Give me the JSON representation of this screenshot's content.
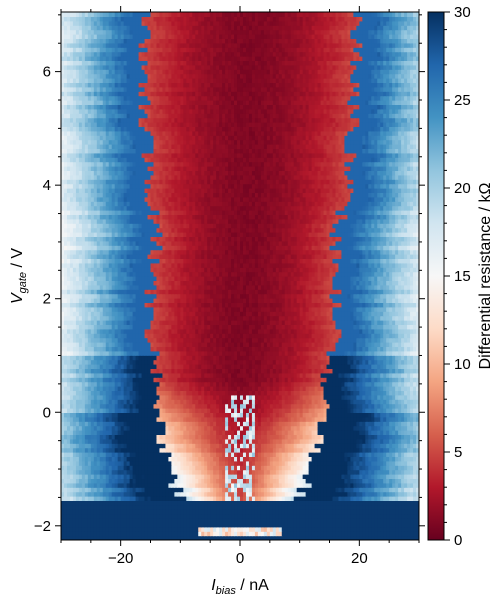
{
  "chart_data": {
    "type": "heatmap",
    "title": "",
    "xlabel": {
      "symbol": "I",
      "subscript": "bias",
      "unit": " / nA"
    },
    "ylabel": {
      "symbol": "V",
      "subscript": "gate",
      "unit": " / V"
    },
    "colorbar_label": "Differential resistance / kΩ",
    "colormap": "RdBu",
    "x_range": [
      -30,
      30
    ],
    "y_range": [
      -2.25,
      7.05
    ],
    "color_range": [
      0,
      30
    ],
    "x_ticks": [
      -20,
      0,
      20
    ],
    "y_ticks": [
      -2,
      0,
      2,
      4,
      6
    ],
    "colorbar_ticks": [
      0,
      5,
      10,
      15,
      20,
      25,
      30
    ],
    "gap_edge_left": [
      {
        "vgate": -2.1,
        "ibias": -6
      },
      {
        "vgate": -1.9,
        "ibias": -14
      },
      {
        "vgate": -1.5,
        "ibias": -10
      },
      {
        "vgate": -1.0,
        "ibias": -12
      },
      {
        "vgate": -0.5,
        "ibias": -13
      },
      {
        "vgate": 0.0,
        "ibias": -13
      },
      {
        "vgate": 0.5,
        "ibias": -14
      },
      {
        "vgate": 1.0,
        "ibias": -14
      },
      {
        "vgate": 1.5,
        "ibias": -15
      },
      {
        "vgate": 2.0,
        "ibias": -15
      },
      {
        "vgate": 3.0,
        "ibias": -14
      },
      {
        "vgate": 4.0,
        "ibias": -15
      },
      {
        "vgate": 5.0,
        "ibias": -16
      },
      {
        "vgate": 6.0,
        "ibias": -16
      },
      {
        "vgate": 7.0,
        "ibias": -16
      }
    ],
    "gap_edge_right": [
      {
        "vgate": -2.1,
        "ibias": 6
      },
      {
        "vgate": -1.9,
        "ibias": 14
      },
      {
        "vgate": -1.5,
        "ibias": 10
      },
      {
        "vgate": -1.0,
        "ibias": 12
      },
      {
        "vgate": -0.5,
        "ibias": 13
      },
      {
        "vgate": 0.0,
        "ibias": 14
      },
      {
        "vgate": 0.5,
        "ibias": 14
      },
      {
        "vgate": 1.0,
        "ibias": 15
      },
      {
        "vgate": 1.5,
        "ibias": 16
      },
      {
        "vgate": 2.0,
        "ibias": 16
      },
      {
        "vgate": 3.0,
        "ibias": 16
      },
      {
        "vgate": 4.0,
        "ibias": 18
      },
      {
        "vgate": 5.0,
        "ibias": 19
      },
      {
        "vgate": 6.0,
        "ibias": 19
      },
      {
        "vgate": 7.0,
        "ibias": 20
      }
    ]
  }
}
